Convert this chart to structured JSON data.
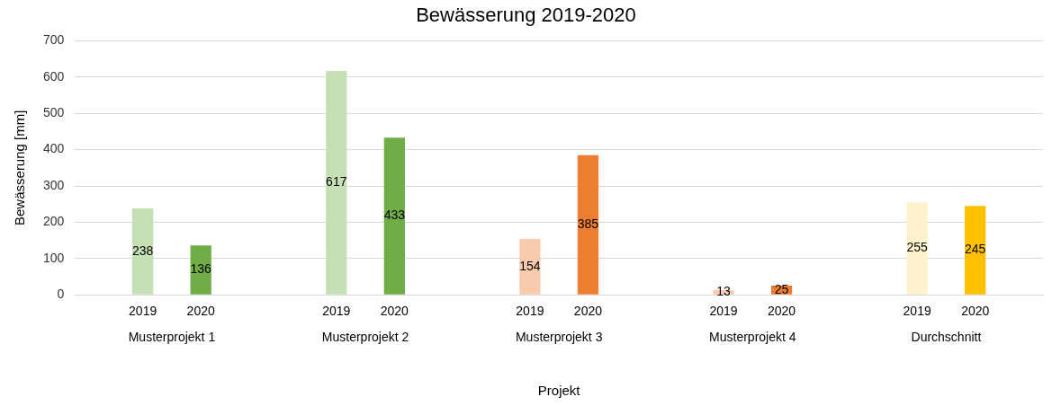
{
  "chart_data": {
    "type": "bar",
    "title": "Bewässerung 2019-2020",
    "xlabel": "Projekt",
    "ylabel": "Bewässerung [mm]",
    "categories": [
      "Musterprojekt 1",
      "Musterprojekt 2",
      "Musterprojekt 3",
      "Musterprojekt 4",
      "Durchschnitt"
    ],
    "series": [
      {
        "name": "2019",
        "colors": [
          "#c5e0b4",
          "#c5e0b4",
          "#f8cbad",
          "#f8cbad",
          "#fff2cc"
        ],
        "values": [
          238,
          617,
          154,
          13,
          255
        ]
      },
      {
        "name": "2020",
        "colors": [
          "#70ad47",
          "#70ad47",
          "#ed7d31",
          "#ed7d31",
          "#ffc000"
        ],
        "values": [
          136,
          433,
          385,
          25,
          245
        ]
      }
    ],
    "ylim": [
      0,
      700
    ],
    "yticks": [
      0,
      100,
      200,
      300,
      400,
      500,
      600,
      700
    ],
    "grid": "y",
    "legend": false,
    "data_labels": true
  }
}
